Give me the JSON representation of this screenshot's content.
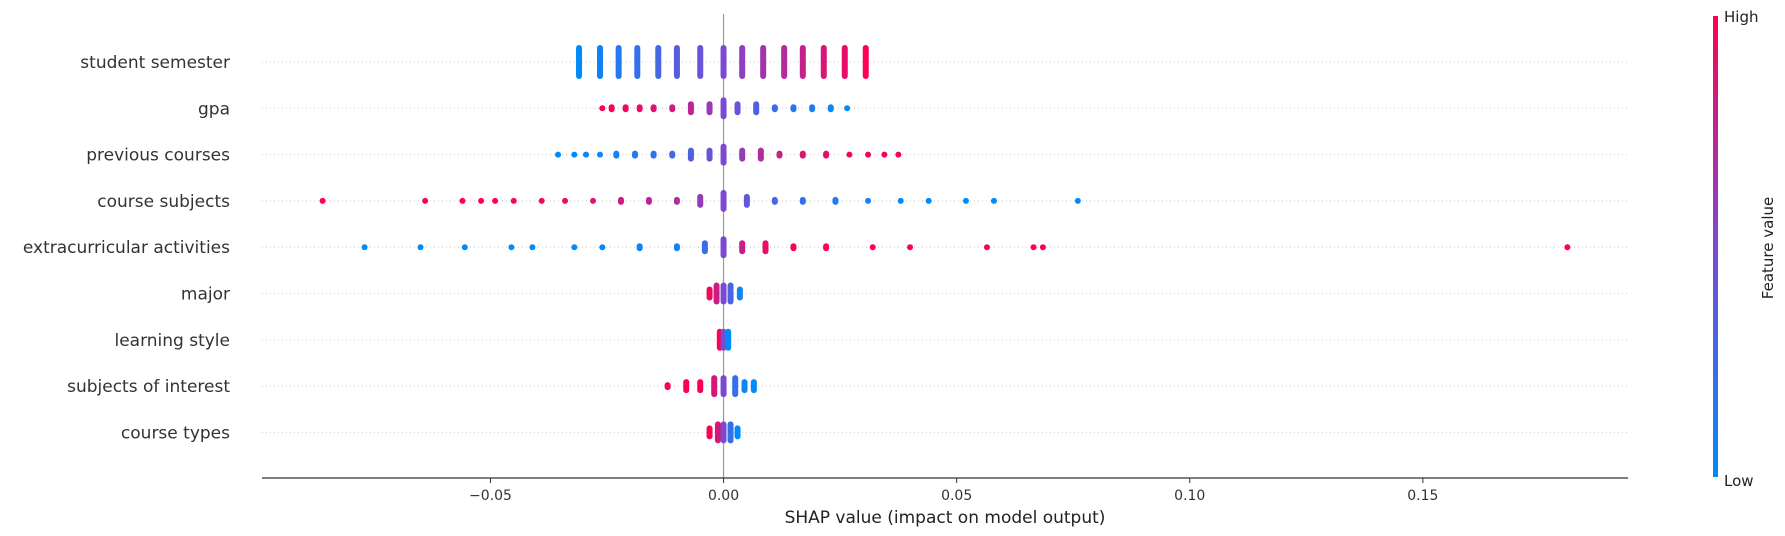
{
  "chart_data": {
    "type": "scatter",
    "subtype": "shap-beeswarm-summary",
    "title": "",
    "xlabel": "SHAP value (impact on model output)",
    "ylabel": "",
    "xlim": [
      -0.099,
      0.194
    ],
    "xticks": [
      {
        "value": -0.05,
        "label": "−0.05"
      },
      {
        "value": 0.0,
        "label": "0.00"
      },
      {
        "value": 0.05,
        "label": "0.05"
      },
      {
        "value": 0.1,
        "label": "0.10"
      },
      {
        "value": 0.15,
        "label": "0.15"
      }
    ],
    "colorbar": {
      "label": "Feature value",
      "high_label": "High",
      "low_label": "Low",
      "low_color": "#008bfb",
      "high_color": "#ff0052"
    },
    "grid": "dotted horizontal lines per feature",
    "features": [
      {
        "name": "student semester",
        "points": [
          {
            "x": -0.031,
            "v": 0.0
          },
          {
            "x": -0.0265,
            "v": 0.07
          },
          {
            "x": -0.0225,
            "v": 0.14
          },
          {
            "x": -0.0185,
            "v": 0.21
          },
          {
            "x": -0.014,
            "v": 0.28
          },
          {
            "x": -0.01,
            "v": 0.35
          },
          {
            "x": -0.005,
            "v": 0.42
          },
          {
            "x": 0.0,
            "v": 0.5
          },
          {
            "x": 0.004,
            "v": 0.57
          },
          {
            "x": 0.0085,
            "v": 0.64
          },
          {
            "x": 0.013,
            "v": 0.71
          },
          {
            "x": 0.017,
            "v": 0.78
          },
          {
            "x": 0.0215,
            "v": 0.85
          },
          {
            "x": 0.026,
            "v": 0.92
          },
          {
            "x": 0.0305,
            "v": 1.0
          }
        ]
      },
      {
        "name": "gpa",
        "points": [
          {
            "x": -0.026,
            "v": 1.0
          },
          {
            "x": -0.024,
            "v": 0.97
          },
          {
            "x": -0.021,
            "v": 0.95
          },
          {
            "x": -0.018,
            "v": 0.92
          },
          {
            "x": -0.015,
            "v": 0.88
          },
          {
            "x": -0.011,
            "v": 0.82
          },
          {
            "x": -0.007,
            "v": 0.74
          },
          {
            "x": -0.003,
            "v": 0.62
          },
          {
            "x": 0.0,
            "v": 0.5
          },
          {
            "x": 0.003,
            "v": 0.42
          },
          {
            "x": 0.007,
            "v": 0.32
          },
          {
            "x": 0.011,
            "v": 0.24
          },
          {
            "x": 0.015,
            "v": 0.16
          },
          {
            "x": 0.019,
            "v": 0.1
          },
          {
            "x": 0.023,
            "v": 0.05
          },
          {
            "x": 0.0265,
            "v": 0.0
          }
        ]
      },
      {
        "name": "previous courses",
        "points": [
          {
            "x": -0.0355,
            "v": 0.0
          },
          {
            "x": -0.032,
            "v": 0.0
          },
          {
            "x": -0.0295,
            "v": 0.03
          },
          {
            "x": -0.0265,
            "v": 0.05
          },
          {
            "x": -0.023,
            "v": 0.08
          },
          {
            "x": -0.019,
            "v": 0.12
          },
          {
            "x": -0.015,
            "v": 0.18
          },
          {
            "x": -0.011,
            "v": 0.25
          },
          {
            "x": -0.007,
            "v": 0.33
          },
          {
            "x": -0.003,
            "v": 0.42
          },
          {
            "x": 0.0,
            "v": 0.5
          },
          {
            "x": 0.004,
            "v": 0.6
          },
          {
            "x": 0.008,
            "v": 0.7
          },
          {
            "x": 0.012,
            "v": 0.78
          },
          {
            "x": 0.017,
            "v": 0.85
          },
          {
            "x": 0.022,
            "v": 0.9
          },
          {
            "x": 0.027,
            "v": 0.95
          },
          {
            "x": 0.031,
            "v": 1.0
          },
          {
            "x": 0.0345,
            "v": 1.0
          },
          {
            "x": 0.0375,
            "v": 1.0
          }
        ]
      },
      {
        "name": "course subjects",
        "points": [
          {
            "x": -0.086,
            "v": 1.0
          },
          {
            "x": -0.064,
            "v": 1.0
          },
          {
            "x": -0.056,
            "v": 1.0
          },
          {
            "x": -0.052,
            "v": 1.0
          },
          {
            "x": -0.049,
            "v": 1.0
          },
          {
            "x": -0.045,
            "v": 0.97
          },
          {
            "x": -0.039,
            "v": 0.95
          },
          {
            "x": -0.034,
            "v": 0.92
          },
          {
            "x": -0.028,
            "v": 0.88
          },
          {
            "x": -0.022,
            "v": 0.82
          },
          {
            "x": -0.016,
            "v": 0.75
          },
          {
            "x": -0.01,
            "v": 0.67
          },
          {
            "x": -0.005,
            "v": 0.6
          },
          {
            "x": 0.0,
            "v": 0.5
          },
          {
            "x": 0.005,
            "v": 0.38
          },
          {
            "x": 0.011,
            "v": 0.28
          },
          {
            "x": 0.017,
            "v": 0.2
          },
          {
            "x": 0.024,
            "v": 0.12
          },
          {
            "x": 0.031,
            "v": 0.06
          },
          {
            "x": 0.038,
            "v": 0.02
          },
          {
            "x": 0.044,
            "v": 0.0
          },
          {
            "x": 0.052,
            "v": 0.0
          },
          {
            "x": 0.058,
            "v": 0.0
          },
          {
            "x": 0.076,
            "v": 0.0
          }
        ]
      },
      {
        "name": "extracurricular activities",
        "points": [
          {
            "x": -0.077,
            "v": 0.0
          },
          {
            "x": -0.065,
            "v": 0.0
          },
          {
            "x": -0.0555,
            "v": 0.0
          },
          {
            "x": -0.0455,
            "v": 0.0
          },
          {
            "x": -0.041,
            "v": 0.0
          },
          {
            "x": -0.032,
            "v": 0.02
          },
          {
            "x": -0.026,
            "v": 0.03
          },
          {
            "x": -0.018,
            "v": 0.05
          },
          {
            "x": -0.01,
            "v": 0.1
          },
          {
            "x": -0.004,
            "v": 0.25
          },
          {
            "x": 0.0,
            "v": 0.5
          },
          {
            "x": 0.004,
            "v": 0.8
          },
          {
            "x": 0.009,
            "v": 0.92
          },
          {
            "x": 0.015,
            "v": 0.97
          },
          {
            "x": 0.022,
            "v": 1.0
          },
          {
            "x": 0.032,
            "v": 1.0
          },
          {
            "x": 0.04,
            "v": 1.0
          },
          {
            "x": 0.0565,
            "v": 1.0
          },
          {
            "x": 0.0665,
            "v": 1.0
          },
          {
            "x": 0.0685,
            "v": 1.0
          },
          {
            "x": 0.181,
            "v": 1.0
          }
        ]
      },
      {
        "name": "major",
        "points": [
          {
            "x": -0.003,
            "v": 0.95
          },
          {
            "x": -0.0015,
            "v": 0.8
          },
          {
            "x": 0.0,
            "v": 0.5
          },
          {
            "x": 0.0015,
            "v": 0.3
          },
          {
            "x": 0.0035,
            "v": 0.05
          }
        ]
      },
      {
        "name": "learning style",
        "points": [
          {
            "x": -0.0008,
            "v": 1.0
          },
          {
            "x": 0.0,
            "v": 0.5
          },
          {
            "x": 0.001,
            "v": 0.0
          }
        ]
      },
      {
        "name": "subjects of interest",
        "points": [
          {
            "x": -0.012,
            "v": 1.0
          },
          {
            "x": -0.008,
            "v": 1.0
          },
          {
            "x": -0.005,
            "v": 1.0
          },
          {
            "x": -0.002,
            "v": 0.85
          },
          {
            "x": 0.0,
            "v": 0.5
          },
          {
            "x": 0.0025,
            "v": 0.2
          },
          {
            "x": 0.0045,
            "v": 0.05
          },
          {
            "x": 0.0065,
            "v": 0.0
          }
        ]
      },
      {
        "name": "course types",
        "points": [
          {
            "x": -0.003,
            "v": 1.0
          },
          {
            "x": -0.0012,
            "v": 0.85
          },
          {
            "x": 0.0,
            "v": 0.5
          },
          {
            "x": 0.0015,
            "v": 0.2
          },
          {
            "x": 0.003,
            "v": 0.0
          }
        ]
      }
    ]
  }
}
